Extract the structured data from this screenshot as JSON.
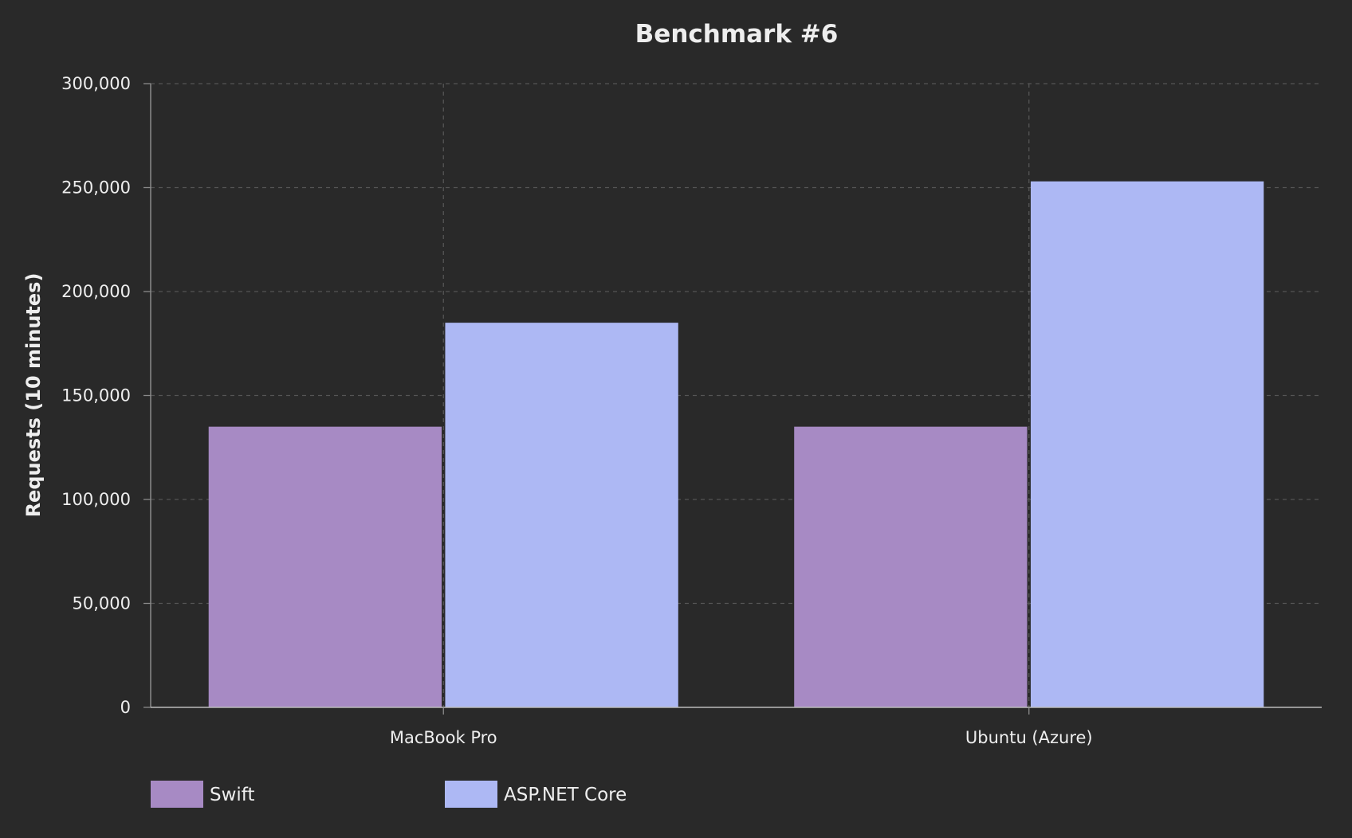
{
  "chart_data": {
    "type": "bar",
    "title": "Benchmark #6",
    "xlabel": "",
    "ylabel": "Requests (10 minutes)",
    "categories": [
      "MacBook Pro",
      "Ubuntu (Azure)"
    ],
    "series": [
      {
        "name": "Swift",
        "values": [
          135000,
          135000
        ],
        "color": "#a78ac4"
      },
      {
        "name": "ASP.NET Core",
        "values": [
          185000,
          253000
        ],
        "color": "#adb8f4"
      }
    ],
    "ylim": [
      0,
      300000
    ],
    "yticks": [
      0,
      50000,
      100000,
      150000,
      200000,
      250000,
      300000
    ],
    "ytick_labels": [
      "0",
      "50,000",
      "100,000",
      "150,000",
      "200,000",
      "250,000",
      "300,000"
    ],
    "grid": true,
    "legend_position": "bottom-left",
    "background_color": "#292929",
    "text_color": "#eeeeee",
    "grid_color": "#555555",
    "axis_color": "#8a8a8a"
  }
}
